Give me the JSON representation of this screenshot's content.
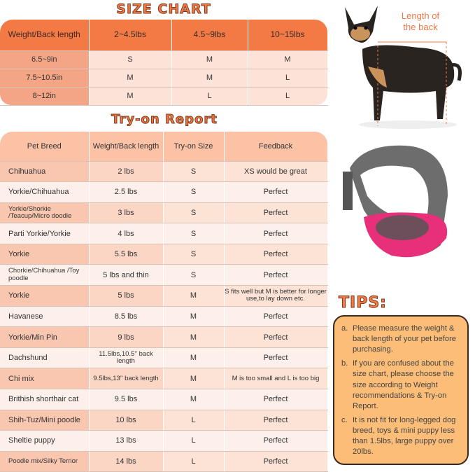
{
  "size_chart": {
    "title": "SIZE CHART",
    "headers": [
      "Weight/Back length",
      "2~4.5lbs",
      "4.5~9lbs",
      "10~15lbs"
    ],
    "rows": [
      [
        "6.5~9in",
        "S",
        "M",
        "M"
      ],
      [
        "7.5~10.5in",
        "M",
        "M",
        "L"
      ],
      [
        "8~12in",
        "M",
        "L",
        "L"
      ]
    ]
  },
  "tryon": {
    "title": "Try-on Report",
    "headers": [
      "Pet Breed",
      "Weight/Back length",
      "Try-on Size",
      "Feedback"
    ],
    "rows": [
      [
        "Chihuahua",
        "2 lbs",
        "S",
        "XS would be great"
      ],
      [
        "Yorkie/Chihuahua",
        "2.5 lbs",
        "S",
        "Perfect"
      ],
      [
        "Yorkie/Shorkie /Teacup/Micro doodle",
        "3 lbs",
        "S",
        "Perfect"
      ],
      [
        "Parti Yorkie/Yorkie",
        "4 lbs",
        "S",
        "Perfect"
      ],
      [
        "Yorkie",
        "5.5 lbs",
        "S",
        "Perfect"
      ],
      [
        "Chorkie/Chihuahua /Toy poodle",
        "5 lbs and thin",
        "S",
        "Perfect"
      ],
      [
        "Yorkie",
        "5 lbs",
        "M",
        "S fits well but M is better for longer use,to lay down etc."
      ],
      [
        "Havanese",
        "8.5 lbs",
        "M",
        "Perfect"
      ],
      [
        "Yorkie/Min Pin",
        "9 lbs",
        "M",
        "Perfect"
      ],
      [
        "Dachshund",
        "11.5lbs,10.5'' back length",
        "M",
        "Perfect"
      ],
      [
        "Chi mix",
        "9.5lbs,13'' back length",
        "M",
        "M is too small and L is too big"
      ],
      [
        "Brithish shorthair cat",
        "9.5 lbs",
        "M",
        "Perfect"
      ],
      [
        "Shih-Tuz/Mini poodle",
        "10 lbs",
        "L",
        "Perfect"
      ],
      [
        "Sheltie puppy",
        "13 lbs",
        "L",
        "Perfect"
      ],
      [
        "Poodle mix/Silky Terrior",
        "14 lbs",
        "L",
        "Perfect"
      ]
    ]
  },
  "dog_photo": {
    "label": "Length of the back"
  },
  "tips": {
    "title": "TIPS:",
    "items": [
      {
        "marker": "a.",
        "text": "Please measure the weight & back length of your pet before purchasing."
      },
      {
        "marker": "b.",
        "text": "If you are confused about the size chart, please choose the size according to Weight recommendations & Try-on Report."
      },
      {
        "marker": "c.",
        "text": "It is not fit for long-legged dog breed, toys & mini puppy less than 1.5lbs, large puppy over 20lbs."
      }
    ]
  },
  "colors": {
    "accent": "#f47a45",
    "tips_bg": "#fbbd77",
    "bag_pink": "#e8307a"
  }
}
